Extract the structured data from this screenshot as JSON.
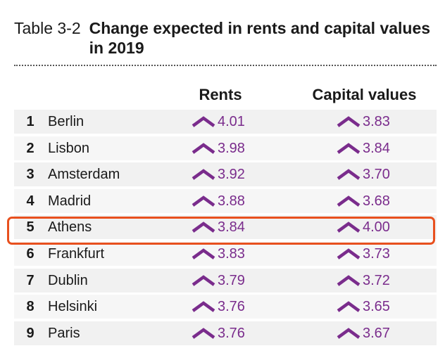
{
  "table": {
    "number": "Table 3-2",
    "title": "Change expected in rents and capital values in 2019",
    "headers": {
      "rents": "Rents",
      "capital": "Capital values"
    },
    "rows": [
      {
        "rank": "1",
        "city": "Berlin",
        "rents": "4.01",
        "capital": "3.83"
      },
      {
        "rank": "2",
        "city": "Lisbon",
        "rents": "3.98",
        "capital": "3.84"
      },
      {
        "rank": "3",
        "city": "Amsterdam",
        "rents": "3.92",
        "capital": "3.70"
      },
      {
        "rank": "4",
        "city": "Madrid",
        "rents": "3.88",
        "capital": "3.68"
      },
      {
        "rank": "5",
        "city": "Athens",
        "rents": "3.84",
        "capital": "4.00"
      },
      {
        "rank": "6",
        "city": "Frankfurt",
        "rents": "3.83",
        "capital": "3.73"
      },
      {
        "rank": "7",
        "city": "Dublin",
        "rents": "3.79",
        "capital": "3.72"
      },
      {
        "rank": "8",
        "city": "Helsinki",
        "rents": "3.76",
        "capital": "3.65"
      },
      {
        "rank": "9",
        "city": "Paris",
        "rents": "3.76",
        "capital": "3.67"
      }
    ],
    "highlighted_row": "Athens"
  },
  "colors": {
    "accent_purple": "#7a2c8c",
    "highlight_orange": "#e8501e"
  },
  "icons": {
    "trend": "up-chevron-icon"
  }
}
